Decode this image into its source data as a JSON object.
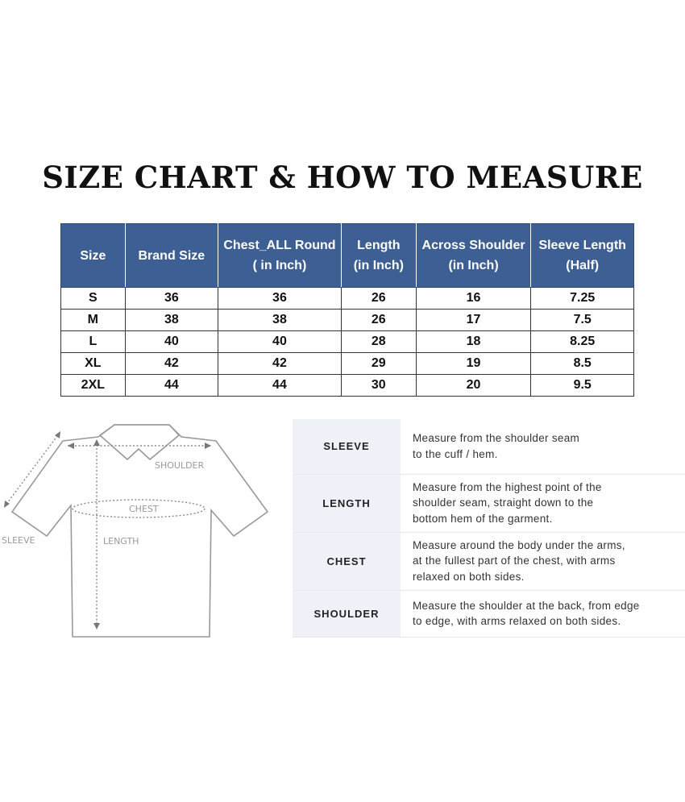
{
  "title": "SIZE CHART & HOW TO MEASURE",
  "size_table": {
    "headers": [
      [
        "Size",
        ""
      ],
      [
        "Brand Size",
        ""
      ],
      [
        "Chest_ALL Round",
        "( in Inch)"
      ],
      [
        "Length",
        "(in Inch)"
      ],
      [
        "Across Shoulder",
        "(in Inch)"
      ],
      [
        "Sleeve Length",
        "(Half)"
      ]
    ],
    "rows": [
      [
        "S",
        "36",
        "36",
        "26",
        "16",
        "7.25"
      ],
      [
        "M",
        "38",
        "38",
        "26",
        "17",
        "7.5"
      ],
      [
        "L",
        "40",
        "40",
        "28",
        "18",
        "8.25"
      ],
      [
        "XL",
        "42",
        "42",
        "29",
        "19",
        "8.5"
      ],
      [
        "2XL",
        "44",
        "44",
        "30",
        "20",
        "9.5"
      ]
    ],
    "header_color": "#3d5f93"
  },
  "diagram": {
    "labels": {
      "shoulder": "SHOULDER",
      "chest": "CHEST",
      "sleeve": "SLEEVE",
      "length": "LENGTH"
    }
  },
  "how_to_measure": [
    {
      "label": "SLEEVE",
      "lines": [
        "Measure from the shoulder seam",
        "to the cuff / hem."
      ]
    },
    {
      "label": "LENGTH",
      "lines": [
        "Measure from the highest point of the",
        "shoulder seam, straight down to the",
        "bottom hem of the garment."
      ]
    },
    {
      "label": "CHEST",
      "lines": [
        "Measure around the body under the arms,",
        "at the fullest part of the chest, with arms",
        "relaxed on both sides."
      ]
    },
    {
      "label": "SHOULDER",
      "lines": [
        "Measure the shoulder at the back, from edge",
        "to edge, with arms relaxed on both sides."
      ]
    }
  ]
}
